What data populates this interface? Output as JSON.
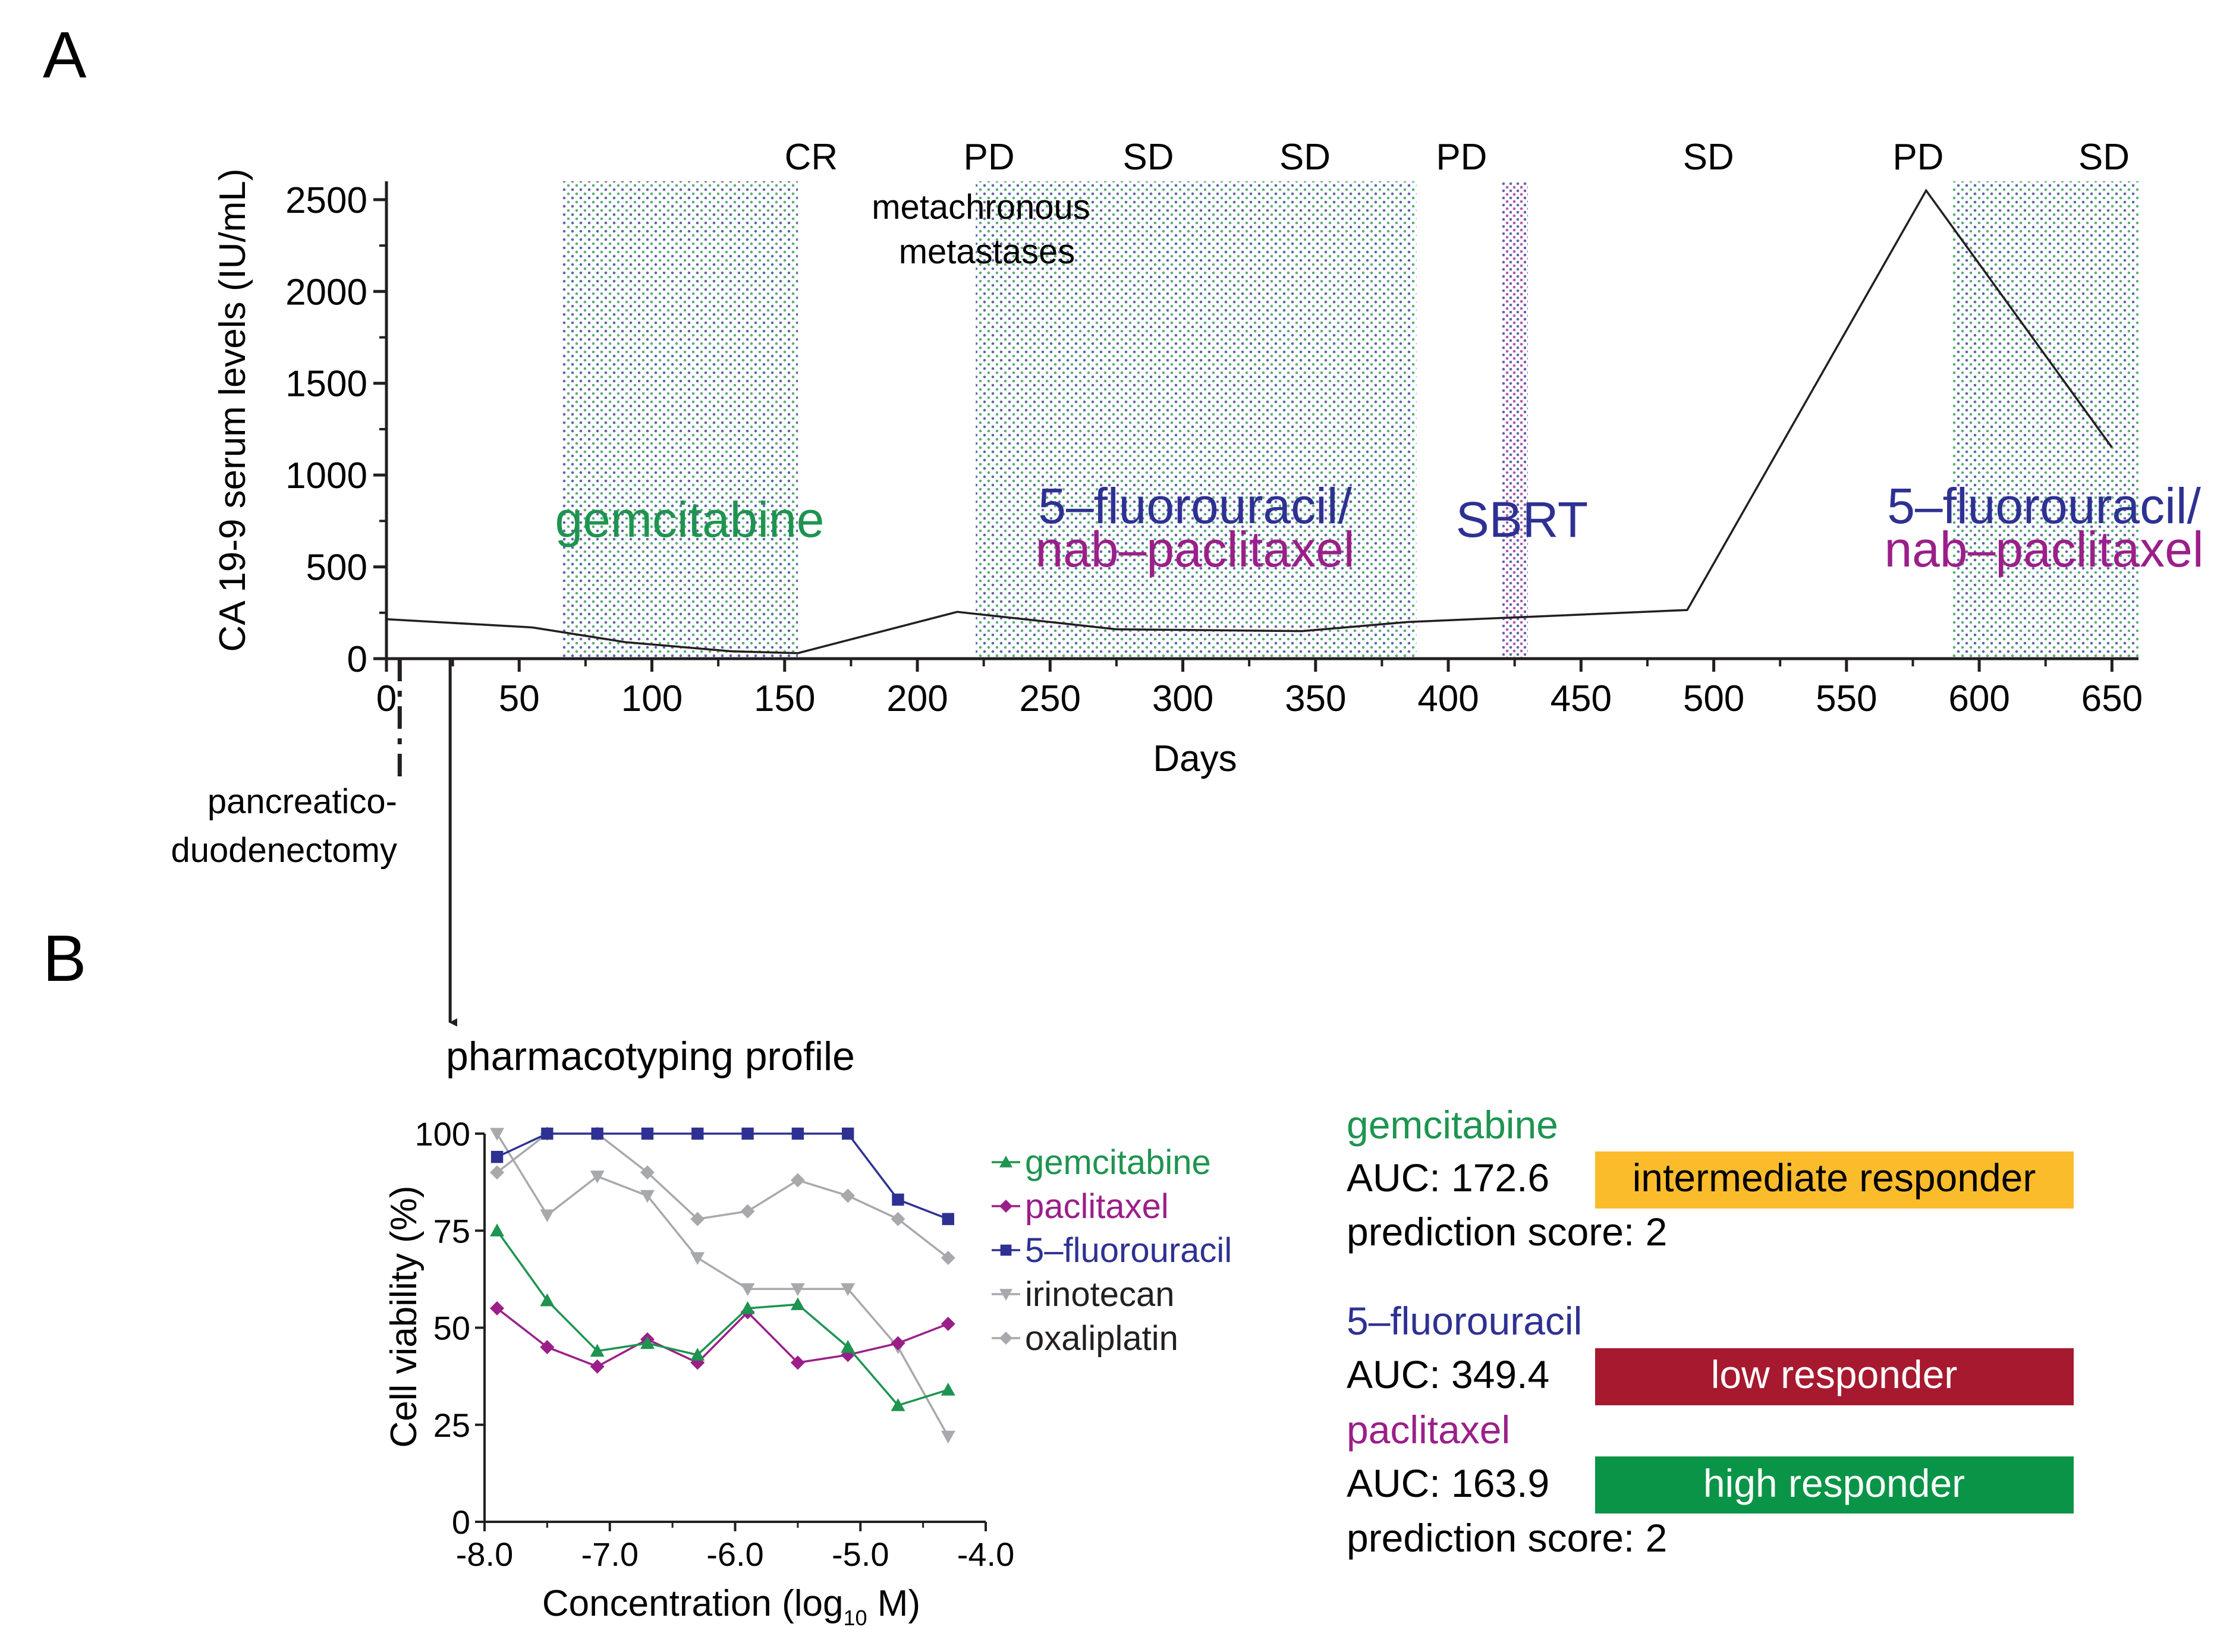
{
  "panel_labels": {
    "a": "A",
    "b": "B"
  },
  "colors": {
    "gemcitabine": "#1e9450",
    "paclitaxel": "#9b1f88",
    "fluorouracil": "#2e3192",
    "irinotecan": "#a7a9ac",
    "oxaliplatin": "#a7a9ac",
    "axis": "#231f20",
    "bar_intermediate": "#fbbc2b",
    "bar_low": "#a6192e",
    "bar_high": "#0a9447"
  },
  "chart_data": [
    {
      "id": "ca199",
      "type": "line",
      "ylabel": "CA 19-9 serum levels (IU/mL)",
      "xlabel": "Days",
      "xlim": [
        0,
        660
      ],
      "ylim": [
        0,
        2600
      ],
      "x_ticks": [
        0,
        50,
        100,
        150,
        200,
        250,
        300,
        350,
        400,
        450,
        500,
        550,
        600,
        650
      ],
      "y_ticks": [
        0,
        500,
        1000,
        1500,
        2000,
        2500
      ],
      "series": [
        {
          "name": "CA 19-9",
          "x": [
            0,
            55,
            90,
            130,
            155,
            215,
            275,
            345,
            385,
            450,
            490,
            580,
            650
          ],
          "y": [
            215,
            170,
            90,
            40,
            30,
            255,
            160,
            150,
            200,
            240,
            265,
            2550,
            1150
          ]
        }
      ],
      "treatments": [
        {
          "label": "gemcitabine",
          "start": 66,
          "end": 155,
          "color": "#1e9450"
        },
        {
          "label_line1": "5–fluorouracil/",
          "label_line2": "nab–paclitaxel",
          "start": 222,
          "end": 388,
          "color1": "#2e3192",
          "color2": "#9b1f88"
        },
        {
          "label": "SBRT",
          "start": 420,
          "end": 430,
          "color": "#2e3192"
        },
        {
          "label_line1": "5–fluorouracil/",
          "label_line2": "nab–paclitaxel",
          "start": 590,
          "end": 660,
          "color1": "#2e3192",
          "color2": "#9b1f88"
        }
      ],
      "responses": [
        {
          "label": "CR",
          "day": 160
        },
        {
          "label": "PD",
          "day": 227
        },
        {
          "label": "SD",
          "day": 287
        },
        {
          "label": "SD",
          "day": 346
        },
        {
          "label": "PD",
          "day": 405
        },
        {
          "label": "SD",
          "day": 498
        },
        {
          "label": "PD",
          "day": 577
        },
        {
          "label": "SD",
          "day": 647
        }
      ],
      "annotations": {
        "metastases_line1": "metachronous",
        "metastases_line2": "metastases",
        "surgery_line1": "pancreatico-",
        "surgery_line2": "duodenectomy",
        "surgery_day": 5,
        "pharmacotyping_day": 24
      }
    },
    {
      "id": "pharmacotyping",
      "type": "line",
      "title": "pharmacotyping profile",
      "ylabel": "Cell viability (%)",
      "xlabel_main": "Concentration (log",
      "xlabel_sub": "10",
      "xlabel_end": " M)",
      "xlim": [
        -8.0,
        -4.0
      ],
      "ylim": [
        0,
        100
      ],
      "x_tick_labels": [
        "-8.0",
        "-7.0",
        "-6.0",
        "-5.0",
        "-4.0"
      ],
      "x_tick_values": [
        -8.0,
        -7.0,
        -6.0,
        -5.0,
        -4.0
      ],
      "y_ticks": [
        0,
        25,
        50,
        75,
        100
      ],
      "x": [
        -7.9,
        -7.5,
        -7.1,
        -6.7,
        -6.3,
        -5.9,
        -5.5,
        -5.1,
        -4.7,
        -4.3
      ],
      "series": [
        {
          "name": "gemcitabine",
          "marker": "triangle",
          "color": "#1e9450",
          "values": [
            75,
            57,
            44,
            46,
            43,
            55,
            56,
            45,
            30,
            34
          ]
        },
        {
          "name": "paclitaxel",
          "marker": "diamond",
          "color": "#9b1f88",
          "values": [
            55,
            45,
            40,
            47,
            41,
            54,
            41,
            43,
            46,
            51
          ]
        },
        {
          "name": "5–fluorouracil",
          "marker": "square",
          "color": "#2e3192",
          "values": [
            94,
            100,
            100,
            100,
            100,
            100,
            100,
            100,
            83,
            78
          ]
        },
        {
          "name": "irinotecan",
          "marker": "triangle-down",
          "color": "#a7a9ac",
          "values": [
            100,
            79,
            89,
            84,
            68,
            60,
            60,
            60,
            45,
            22
          ]
        },
        {
          "name": "oxaliplatin",
          "marker": "diamond",
          "color": "#a7a9ac",
          "values": [
            90,
            100,
            100,
            90,
            78,
            80,
            88,
            84,
            78,
            68
          ]
        }
      ]
    }
  ],
  "responder_panel": {
    "gemcitabine": {
      "drug": "gemcitabine",
      "auc": "AUC: 172.6",
      "badge": "intermediate responder",
      "score": "prediction score: 2"
    },
    "fluorouracil": {
      "drug": "5–fluorouracil",
      "auc": "AUC: 349.4",
      "badge": "low responder"
    },
    "paclitaxel": {
      "drug": "paclitaxel",
      "auc": "AUC: 163.9",
      "badge": "high responder",
      "score": "prediction score: 2"
    }
  }
}
